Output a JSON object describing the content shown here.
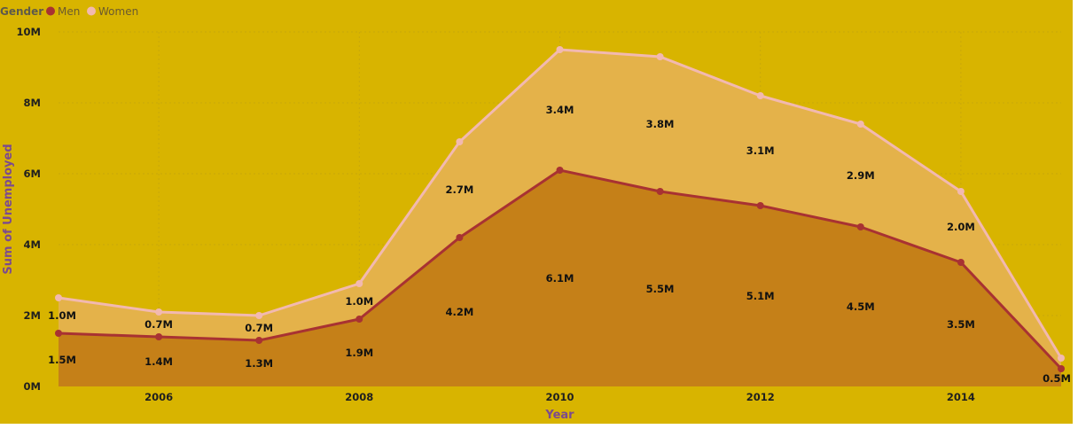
{
  "chart_data": {
    "type": "area",
    "stacked": true,
    "x": [
      2005,
      2006,
      2007,
      2008,
      2009,
      2010,
      2011,
      2012,
      2013,
      2014,
      2015
    ],
    "x_tick_labels": [
      "2006",
      "2008",
      "2010",
      "2012",
      "2014"
    ],
    "y_tick_labels": [
      "0M",
      "2M",
      "4M",
      "6M",
      "8M",
      "10M"
    ],
    "xlabel": "Year",
    "ylabel": "Sum of Unemployed",
    "ylim": [
      0,
      10
    ],
    "xlim": [
      2005,
      2015
    ],
    "grid": true,
    "legend": {
      "title": "Gender",
      "position": "top-left",
      "entries": [
        "Men",
        "Women"
      ]
    },
    "series": [
      {
        "name": "Men",
        "values": [
          1.5,
          1.4,
          1.3,
          1.9,
          4.2,
          6.1,
          5.5,
          5.1,
          4.5,
          3.5,
          0.5
        ],
        "labels": [
          "1.5M",
          "1.4M",
          "1.3M",
          "1.9M",
          "4.2M",
          "6.1M",
          "5.5M",
          "5.1M",
          "4.5M",
          "3.5M",
          "0.5M"
        ],
        "line_color": "#a83232",
        "fill_color": "#c58018"
      },
      {
        "name": "Women",
        "values": [
          1.0,
          0.7,
          0.7,
          1.0,
          2.7,
          3.4,
          3.8,
          3.1,
          2.9,
          2.0,
          0.3
        ],
        "labels": [
          "1.0M",
          "0.7M",
          "0.7M",
          "1.0M",
          "2.7M",
          "3.4M",
          "3.8M",
          "3.1M",
          "2.9M",
          "2.0M",
          ""
        ],
        "line_color": "#f2b9b0",
        "fill_color": "#e4b24a"
      }
    ]
  }
}
